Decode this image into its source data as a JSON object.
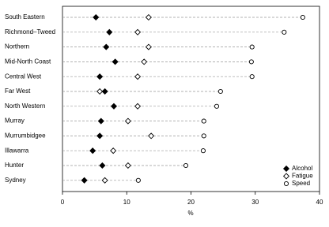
{
  "chart_data": {
    "type": "dot",
    "categories": [
      "South Eastern",
      "Richmond–Tweed",
      "Northern",
      "Mid-North Coast",
      "Central West",
      "Far West",
      "North Western",
      "Murray",
      "Murrumbidgee",
      "Illawarra",
      "Hunter",
      "Sydney"
    ],
    "series": [
      {
        "name": "Alcohol",
        "color": "#000000",
        "marker": "filled-diamond",
        "values": [
          5.2,
          7.3,
          6.8,
          8.2,
          5.8,
          6.6,
          8.0,
          6.0,
          5.8,
          4.7,
          6.2,
          3.4
        ]
      },
      {
        "name": "Fatigue",
        "color": "#000000",
        "marker": "open-diamond",
        "values": [
          13.4,
          11.7,
          13.4,
          12.7,
          11.7,
          5.8,
          11.7,
          10.2,
          13.8,
          7.9,
          10.2,
          6.6
        ]
      },
      {
        "name": "Speed",
        "color": "#000000",
        "marker": "open-circle",
        "values": [
          37.4,
          34.5,
          29.5,
          29.4,
          29.5,
          24.6,
          24.0,
          22.0,
          22.0,
          21.9,
          19.2,
          11.8
        ]
      }
    ],
    "xlim": [
      0,
      40
    ],
    "xticks": [
      0,
      10,
      20,
      30,
      40
    ],
    "xlabel": "%",
    "legend": "lower right"
  }
}
